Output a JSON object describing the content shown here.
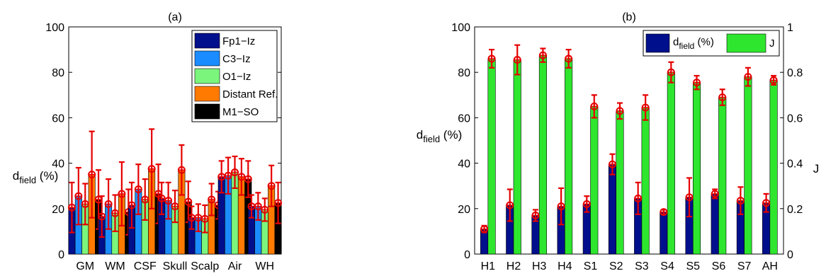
{
  "chart_data": [
    {
      "type": "bar",
      "panel_label": "(a)",
      "ylabel_main": "d",
      "ylabel_sub": "field",
      "ylabel_unit": "(%)",
      "ylim": [
        0,
        100
      ],
      "yticks": [
        "0",
        "20",
        "40",
        "60",
        "80",
        "100"
      ],
      "categories": [
        "GM",
        "WM",
        "CSF",
        "Skull",
        "Scalp",
        "Air",
        "WH"
      ],
      "legend_position": "top-right",
      "series": [
        {
          "name": "Fp1−Iz",
          "color": "#000f8c",
          "values": [
            20.5,
            16.5,
            21.5,
            24.5,
            16,
            34,
            21
          ],
          "err": [
            11,
            9,
            10,
            7,
            5,
            7,
            5
          ]
        },
        {
          "name": "C3−Iz",
          "color": "#1a8cff",
          "values": [
            25.5,
            22,
            28.5,
            23.5,
            16,
            34.5,
            21
          ],
          "err": [
            12.5,
            11,
            11,
            8,
            6,
            8,
            6
          ]
        },
        {
          "name": "O1−Iz",
          "color": "#7cf57c",
          "values": [
            22,
            18,
            24,
            21,
            15.5,
            36,
            19.5
          ],
          "err": [
            9,
            8,
            9,
            7,
            6,
            7,
            5
          ]
        },
        {
          "name": "Distant Ref.",
          "color": "#ff7a00",
          "values": [
            35,
            26.5,
            37.5,
            37,
            24,
            34,
            30
          ],
          "err": [
            19,
            14,
            17.5,
            11,
            7,
            8,
            9
          ]
        },
        {
          "name": "M1−SO",
          "color": "#000000",
          "values": [
            24,
            18.5,
            26.5,
            23,
            21.5,
            33,
            22.5
          ],
          "err": [
            13,
            10,
            13,
            9,
            6,
            8,
            9
          ]
        }
      ]
    },
    {
      "type": "bar",
      "panel_label": "(b)",
      "ylabel_main": "d",
      "ylabel_sub": "field",
      "ylabel_unit": "(%)",
      "ylabel_right": "J",
      "ylim": [
        0,
        100
      ],
      "ylim_right": [
        0,
        1
      ],
      "yticks": [
        "0",
        "20",
        "40",
        "60",
        "80",
        "100"
      ],
      "yticks_right": [
        "0",
        "0.2",
        "0.4",
        "0.6",
        "0.8",
        "1"
      ],
      "categories": [
        "H1",
        "H2",
        "H3",
        "H4",
        "S1",
        "S2",
        "S3",
        "S4",
        "S5",
        "S6",
        "S7",
        "AH"
      ],
      "legend_position": "top-right",
      "series": [
        {
          "name_main": "d",
          "name_sub": "field",
          "name_unit": "(%)",
          "color": "#000f8c",
          "axis": "left",
          "values": [
            11,
            21.5,
            17,
            21,
            22,
            39.5,
            24.5,
            18.5,
            25,
            26.5,
            23.5,
            22.5
          ],
          "err": [
            1.5,
            7,
            2.5,
            8,
            3.5,
            4.5,
            7,
            1,
            8.5,
            2,
            6,
            4
          ]
        },
        {
          "name": "J",
          "color": "#2ee62e",
          "axis": "right",
          "values": [
            0.86,
            0.855,
            0.875,
            0.86,
            0.65,
            0.63,
            0.645,
            0.8,
            0.755,
            0.69,
            0.78,
            0.765
          ],
          "err": [
            0.04,
            0.065,
            0.03,
            0.04,
            0.05,
            0.035,
            0.055,
            0.045,
            0.03,
            0.035,
            0.04,
            0.02
          ]
        }
      ]
    }
  ]
}
